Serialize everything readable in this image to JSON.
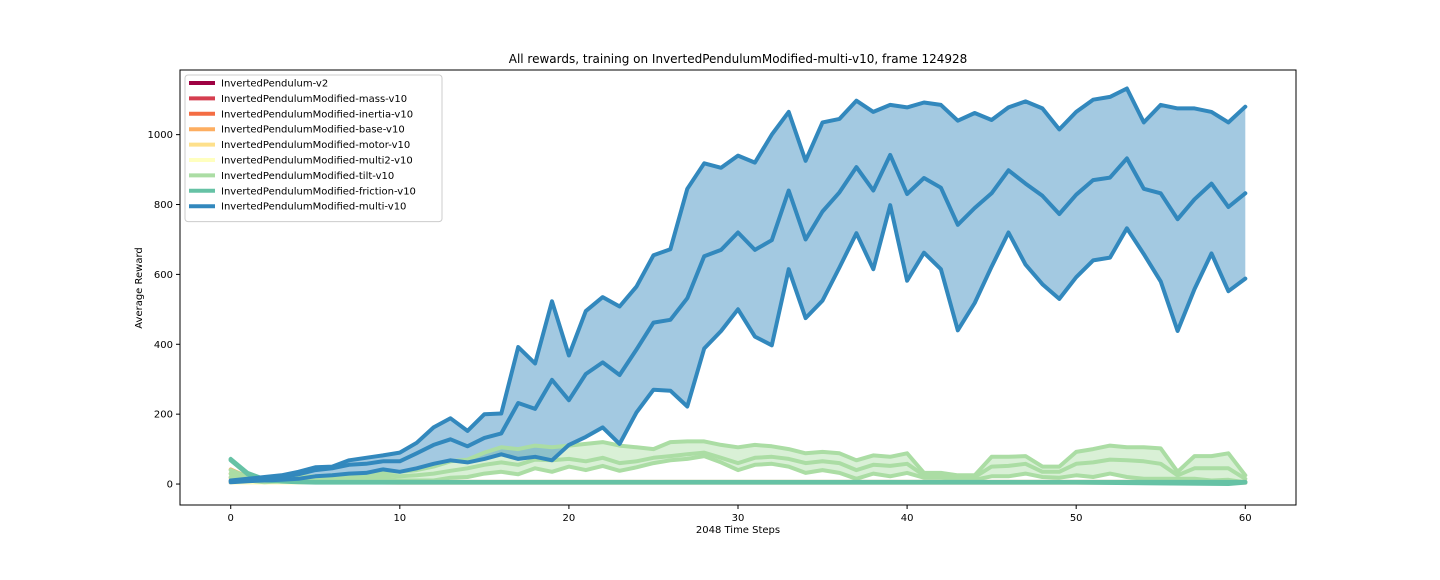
{
  "chart_data": {
    "type": "line",
    "title": "All rewards, training on InvertedPendulumModified-multi-v10, frame 124928",
    "xlabel": "2048 Time Steps",
    "ylabel": "Average Reward",
    "xlim": [
      -3,
      63
    ],
    "ylim": [
      -60,
      1185
    ],
    "xticks": [
      0,
      10,
      20,
      30,
      40,
      50,
      60
    ],
    "yticks": [
      0,
      200,
      400,
      600,
      800,
      1000
    ],
    "grid": false,
    "legend_position": "top-left",
    "series": [
      {
        "name": "InvertedPendulum-v2",
        "color": "#9e0142",
        "x": [
          0,
          60
        ],
        "mean": [
          5,
          5
        ],
        "upper": [
          5,
          5
        ],
        "lower": [
          5,
          5
        ]
      },
      {
        "name": "InvertedPendulumModified-mass-v10",
        "color": "#d53e4f",
        "x": [
          0,
          60
        ],
        "mean": [
          5,
          5
        ],
        "upper": [
          5,
          5
        ],
        "lower": [
          5,
          5
        ]
      },
      {
        "name": "InvertedPendulumModified-inertia-v10",
        "color": "#f46d43",
        "x": [
          0,
          60
        ],
        "mean": [
          5,
          5
        ],
        "upper": [
          5,
          5
        ],
        "lower": [
          5,
          5
        ]
      },
      {
        "name": "InvertedPendulumModified-base-v10",
        "color": "#fdae61",
        "x": [
          0,
          1,
          2,
          3,
          5,
          10,
          20,
          30,
          40,
          50,
          60
        ],
        "mean": [
          30,
          15,
          10,
          8,
          6,
          5,
          5,
          5,
          5,
          5,
          5
        ],
        "upper": [
          42,
          20,
          12,
          10,
          8,
          6,
          6,
          6,
          6,
          6,
          6
        ],
        "lower": [
          18,
          10,
          8,
          6,
          5,
          4,
          4,
          4,
          4,
          4,
          4
        ]
      },
      {
        "name": "InvertedPendulumModified-motor-v10",
        "color": "#fee08b",
        "x": [
          0,
          60
        ],
        "mean": [
          5,
          5
        ],
        "upper": [
          5,
          5
        ],
        "lower": [
          5,
          5
        ]
      },
      {
        "name": "InvertedPendulumModified-multi2-v10",
        "color": "#ffffbf",
        "x": [
          0,
          60
        ],
        "mean": [
          5,
          5
        ],
        "upper": [
          5,
          5
        ],
        "lower": [
          5,
          5
        ]
      },
      {
        "name": "InvertedPendulumModified-tilt-v10",
        "color": "#abdda4",
        "x": [
          0,
          1,
          2,
          3,
          4,
          5,
          6,
          7,
          8,
          9,
          10,
          11,
          12,
          13,
          14,
          15,
          16,
          17,
          18,
          19,
          20,
          21,
          22,
          23,
          24,
          25,
          26,
          27,
          28,
          29,
          30,
          31,
          32,
          33,
          34,
          35,
          36,
          37,
          38,
          39,
          40,
          41,
          42,
          43,
          44,
          45,
          46,
          47,
          48,
          49,
          50,
          51,
          52,
          53,
          54,
          55,
          56,
          57,
          58,
          59,
          60
        ],
        "upper": [
          40,
          20,
          15,
          18,
          20,
          22,
          25,
          28,
          30,
          35,
          35,
          40,
          50,
          65,
          70,
          90,
          105,
          100,
          110,
          105,
          110,
          115,
          120,
          110,
          105,
          100,
          120,
          122,
          122,
          112,
          105,
          112,
          108,
          100,
          88,
          92,
          88,
          68,
          82,
          78,
          88,
          32,
          32,
          25,
          25,
          78,
          78,
          80,
          50,
          50,
          92,
          100,
          110,
          105,
          105,
          102,
          35,
          80,
          80,
          88,
          25
        ],
        "mean": [
          30,
          15,
          10,
          12,
          14,
          16,
          18,
          20,
          22,
          25,
          22,
          25,
          30,
          38,
          45,
          55,
          62,
          55,
          70,
          68,
          72,
          65,
          75,
          60,
          65,
          75,
          80,
          85,
          90,
          75,
          60,
          75,
          78,
          72,
          60,
          65,
          60,
          40,
          55,
          52,
          58,
          25,
          25,
          20,
          20,
          50,
          52,
          58,
          35,
          35,
          58,
          62,
          70,
          68,
          65,
          58,
          25,
          45,
          45,
          45,
          15
        ],
        "lower": [
          20,
          10,
          5,
          8,
          10,
          10,
          10,
          12,
          12,
          15,
          10,
          10,
          10,
          18,
          20,
          30,
          35,
          28,
          45,
          35,
          50,
          40,
          52,
          38,
          48,
          60,
          68,
          72,
          80,
          62,
          40,
          55,
          58,
          50,
          32,
          40,
          32,
          15,
          30,
          22,
          32,
          18,
          18,
          15,
          12,
          22,
          22,
          30,
          20,
          18,
          25,
          20,
          30,
          20,
          15,
          15,
          15,
          15,
          10,
          12,
          5
        ]
      },
      {
        "name": "InvertedPendulumModified-friction-v10",
        "color": "#66c2a5",
        "x": [
          0,
          1,
          2,
          3,
          4,
          5,
          10,
          20,
          30,
          40,
          50,
          59,
          60
        ],
        "mean": [
          70,
          30,
          12,
          8,
          6,
          5,
          5,
          5,
          5,
          5,
          5,
          5,
          5
        ],
        "upper": [
          72,
          32,
          14,
          9,
          7,
          6,
          6,
          6,
          6,
          6,
          6,
          6,
          6
        ],
        "lower": [
          68,
          28,
          10,
          7,
          5,
          4,
          4,
          4,
          4,
          4,
          4,
          0,
          4
        ]
      },
      {
        "name": "InvertedPendulumModified-multi-v10",
        "color": "#3288bd",
        "x": [
          0,
          1,
          2,
          3,
          4,
          5,
          6,
          7,
          8,
          9,
          10,
          11,
          12,
          13,
          14,
          15,
          16,
          17,
          18,
          19,
          20,
          21,
          22,
          23,
          24,
          25,
          26,
          27,
          28,
          29,
          30,
          31,
          32,
          33,
          34,
          35,
          36,
          37,
          38,
          39,
          40,
          41,
          42,
          43,
          44,
          45,
          46,
          47,
          48,
          49,
          50,
          51,
          52,
          53,
          54,
          55,
          56,
          57,
          58,
          59,
          60
        ],
        "upper": [
          10,
          15,
          20,
          25,
          35,
          48,
          50,
          68,
          75,
          82,
          90,
          118,
          162,
          188,
          152,
          200,
          202,
          392,
          345,
          523,
          368,
          495,
          535,
          508,
          565,
          655,
          672,
          845,
          918,
          905,
          940,
          920,
          1000,
          1065,
          925,
          1035,
          1045,
          1097,
          1065,
          1085,
          1078,
          1092,
          1085,
          1040,
          1062,
          1042,
          1078,
          1095,
          1075,
          1015,
          1065,
          1100,
          1108,
          1132,
          1035,
          1085,
          1075,
          1075,
          1065,
          1035,
          1080
        ],
        "mean": [
          8,
          12,
          15,
          20,
          28,
          40,
          45,
          55,
          58,
          65,
          65,
          88,
          112,
          128,
          108,
          132,
          145,
          232,
          215,
          298,
          240,
          315,
          348,
          312,
          385,
          462,
          470,
          532,
          652,
          670,
          720,
          670,
          698,
          840,
          700,
          780,
          835,
          907,
          840,
          942,
          830,
          876,
          848,
          742,
          790,
          832,
          898,
          860,
          825,
          773,
          828,
          870,
          877,
          932,
          845,
          832,
          758,
          815,
          860,
          793,
          832
        ],
        "lower": [
          5,
          8,
          10,
          12,
          15,
          22,
          25,
          30,
          32,
          42,
          35,
          45,
          58,
          68,
          62,
          72,
          85,
          72,
          78,
          68,
          112,
          135,
          162,
          115,
          205,
          270,
          267,
          222,
          388,
          438,
          500,
          422,
          397,
          615,
          475,
          525,
          620,
          718,
          615,
          798,
          582,
          662,
          615,
          440,
          518,
          622,
          720,
          628,
          572,
          530,
          592,
          640,
          648,
          732,
          658,
          580,
          438,
          558,
          660,
          552,
          588
        ]
      }
    ]
  }
}
